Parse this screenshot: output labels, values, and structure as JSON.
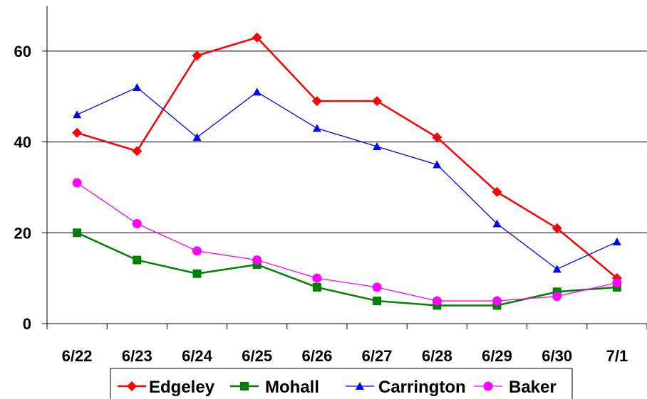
{
  "chart_data": {
    "type": "line",
    "categories": [
      "6/22",
      "6/23",
      "6/24",
      "6/25",
      "6/26",
      "6/27",
      "6/28",
      "6/29",
      "6/30",
      "7/1"
    ],
    "y_ticks": [
      "0",
      "20",
      "40",
      "60"
    ],
    "ylim": [
      0,
      70
    ],
    "grid": "horizontal",
    "legend_position": "bottom",
    "series": [
      {
        "name": "Edgeley",
        "color": "#ff0000",
        "marker": "diamond",
        "values": [
          42,
          38,
          59,
          63,
          49,
          49,
          41,
          29,
          21,
          10
        ]
      },
      {
        "name": "Mohall",
        "color": "#008000",
        "marker": "square",
        "values": [
          20,
          14,
          11,
          13,
          8,
          5,
          4,
          4,
          7,
          8
        ]
      },
      {
        "name": "Carrington",
        "color": "#0000ff",
        "marker": "triangle",
        "values": [
          46,
          52,
          41,
          51,
          43,
          39,
          35,
          22,
          12,
          18
        ]
      },
      {
        "name": "Baker",
        "color": "#ff00ff",
        "marker": "circle",
        "values": [
          31,
          22,
          16,
          14,
          10,
          8,
          5,
          5,
          6,
          9
        ]
      }
    ]
  }
}
